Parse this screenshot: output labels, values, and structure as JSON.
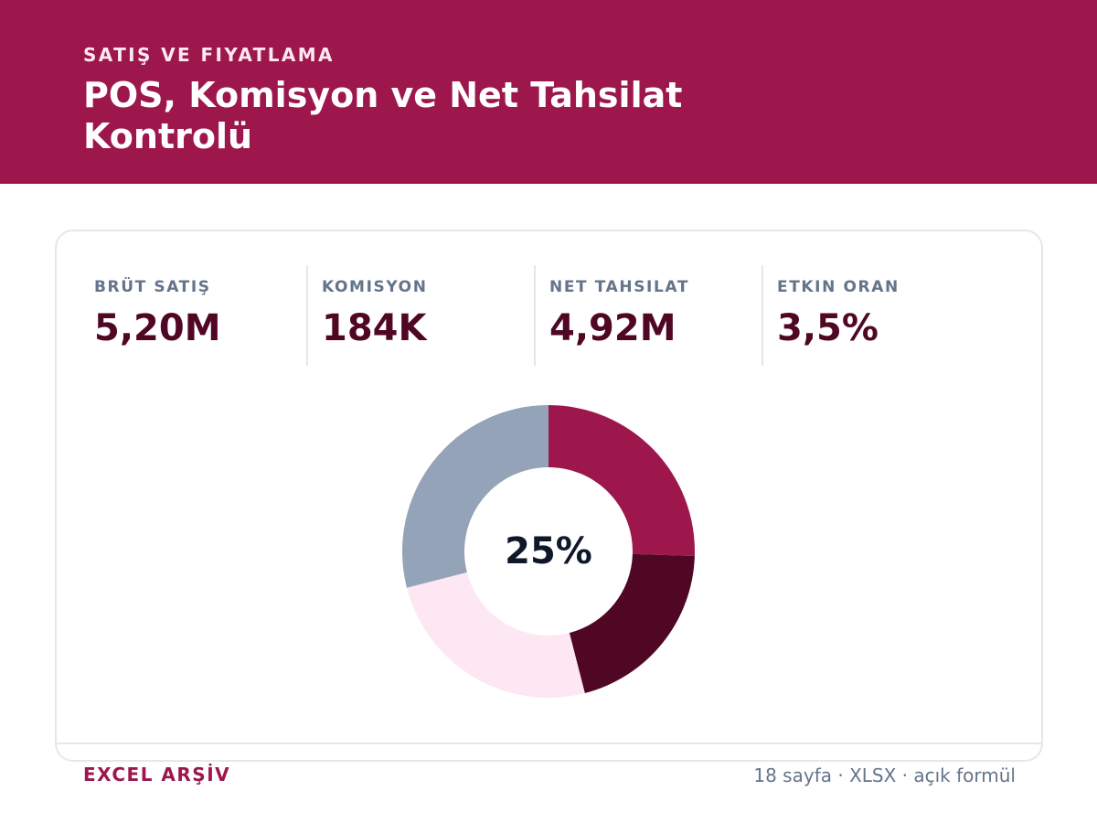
{
  "header": {
    "eyebrow": "SATIŞ VE FIYATLAMA",
    "title": "POS, Komisyon ve Net Tahsilat Kontrolü"
  },
  "stats": [
    {
      "label": "BRÜT SATIŞ",
      "value": "5,20M"
    },
    {
      "label": "KOMISYON",
      "value": "184K"
    },
    {
      "label": "NET TAHSILAT",
      "value": "4,92M"
    },
    {
      "label": "ETKIN ORAN",
      "value": "3,5%"
    }
  ],
  "chart_data": {
    "type": "pie",
    "donut": true,
    "center_label": "25%",
    "values": [
      25.5,
      20.5,
      25,
      29
    ],
    "colors": [
      "#9d174d",
      "#500724",
      "#fce7f3",
      "#94a3b8"
    ]
  },
  "footer": {
    "left": "EXCEL ARŞİV",
    "right": "18 sayfa · XLSX · açık formül"
  }
}
